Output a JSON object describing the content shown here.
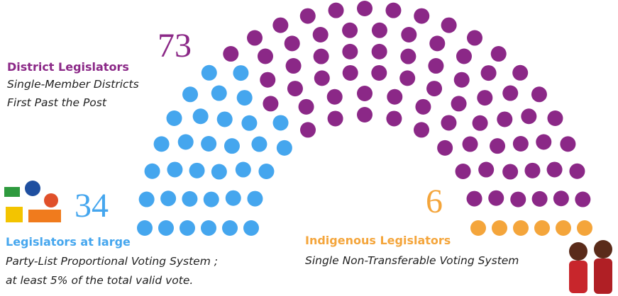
{
  "chart_data": {
    "type": "parliament",
    "series": [
      {
        "name": "Legislators at large",
        "color": "#45a6ee",
        "value": 34,
        "notes": [
          "Party-List Proportional Voting System ;",
          "at least 5% of the total valid vote."
        ]
      },
      {
        "name": "District Legislators",
        "color": "#8b2887",
        "value": 73,
        "notes": [
          "Single-Member Districts",
          "First Past the Post"
        ]
      },
      {
        "name": "Indigenous Legislators",
        "color": "#f4a53b",
        "value": 6,
        "notes": [
          "Single Non-Transferable Voting System"
        ]
      }
    ]
  }
}
